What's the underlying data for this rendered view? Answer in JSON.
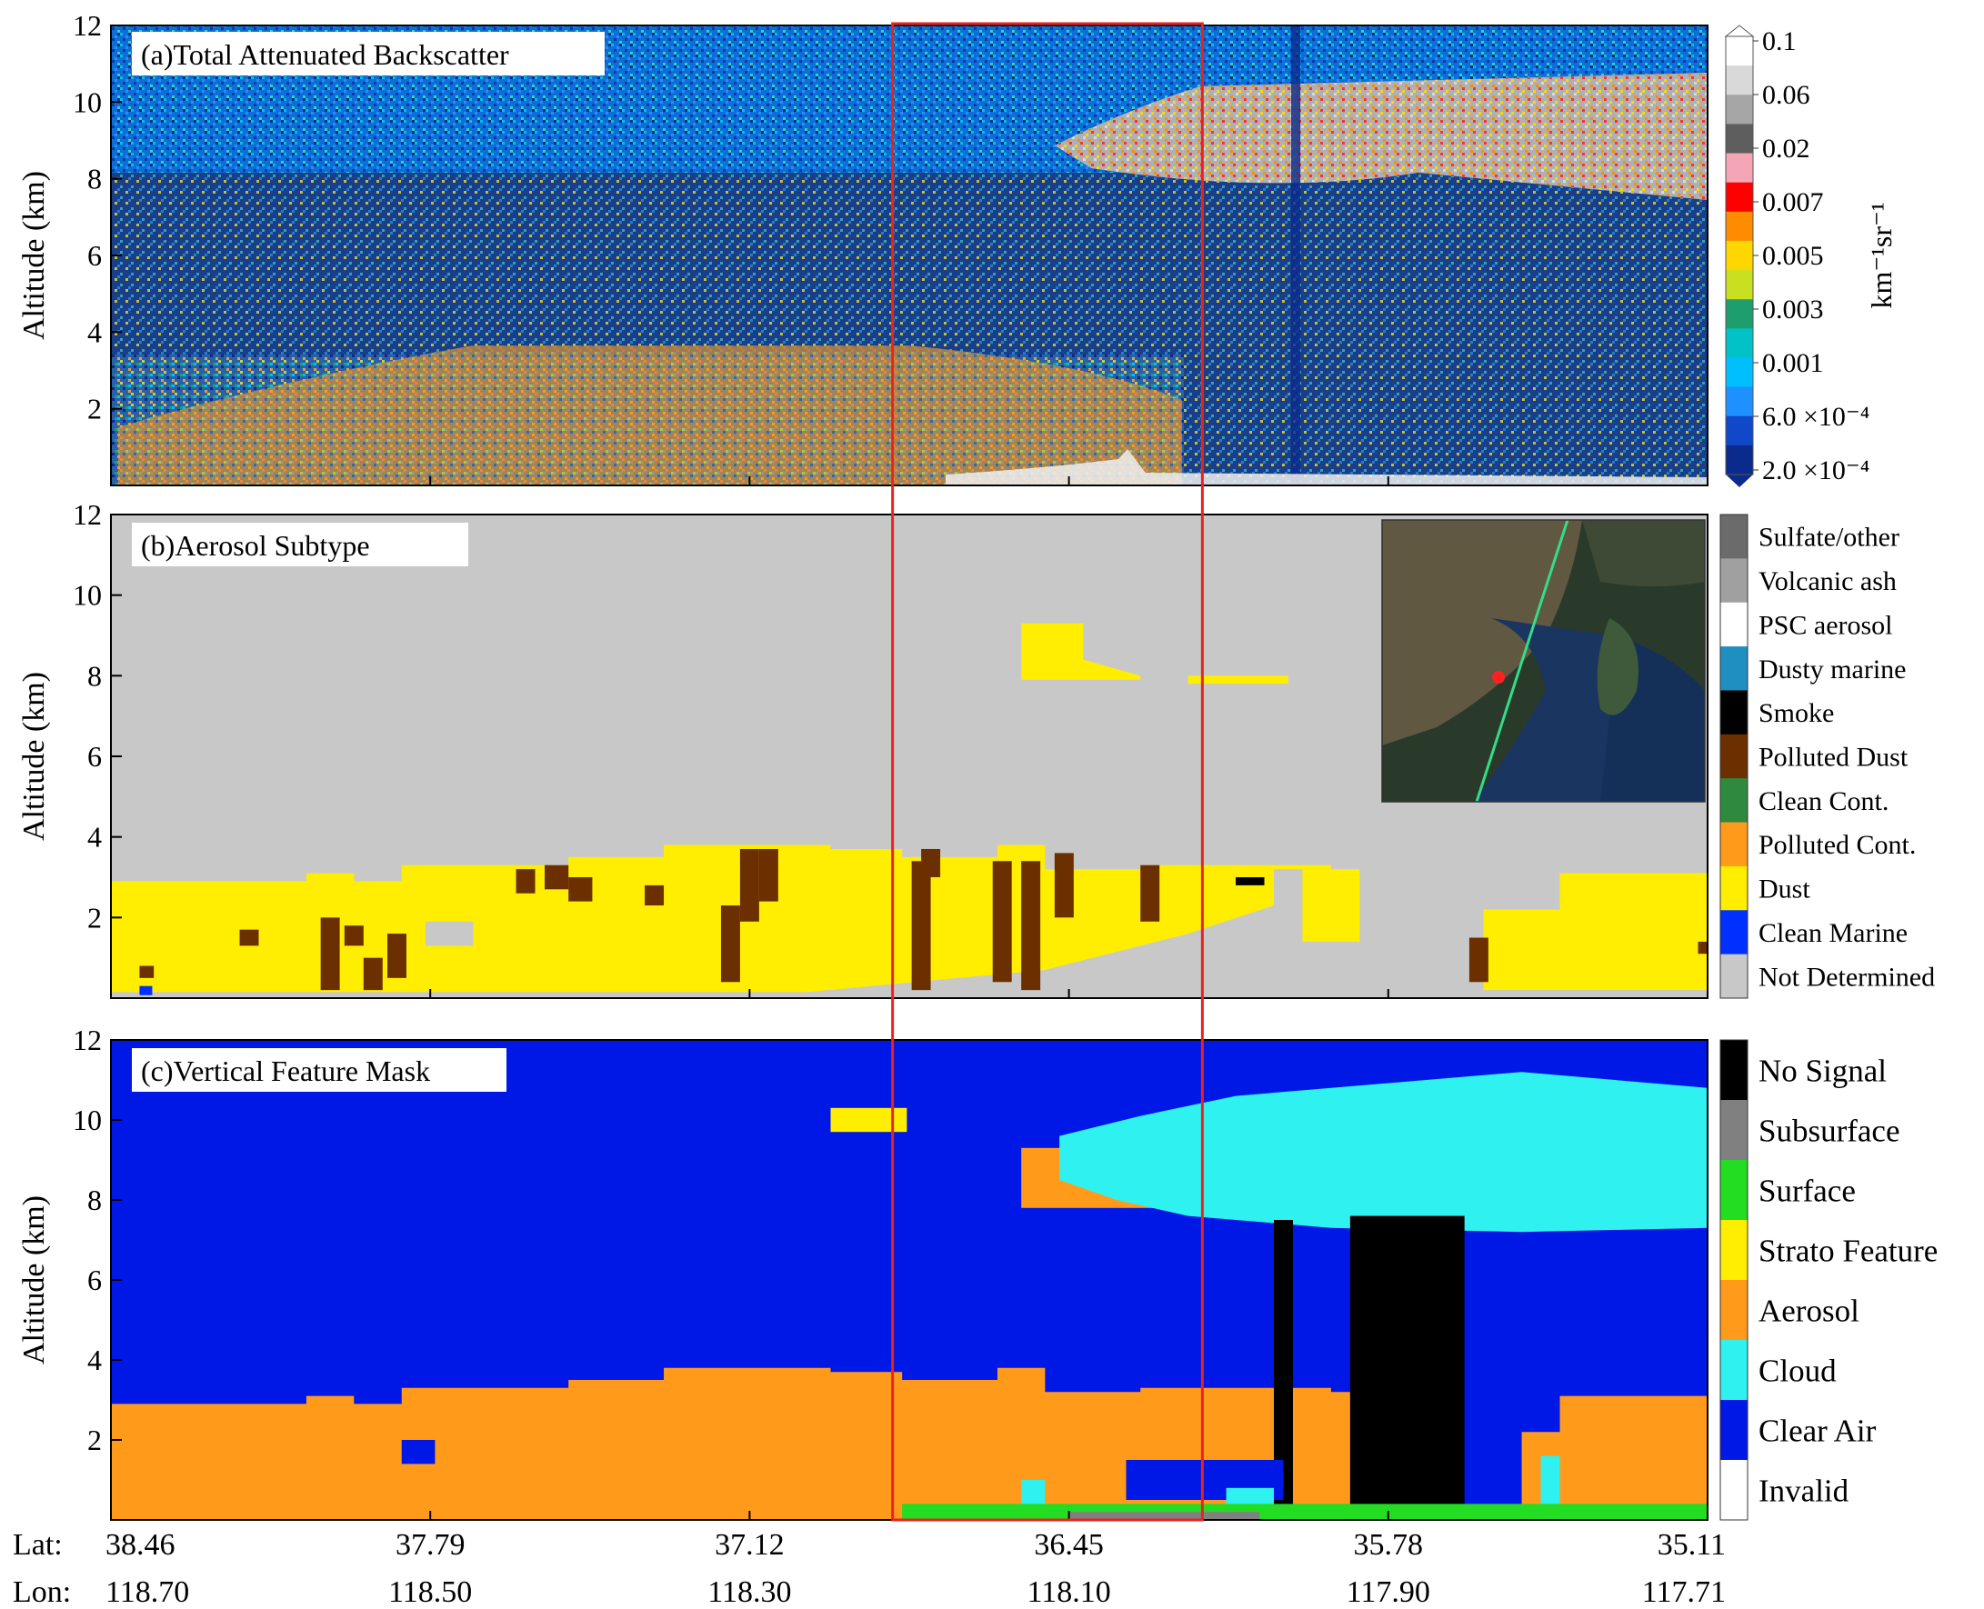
{
  "figure": {
    "x_axis": {
      "lat_prefix": "Lat:",
      "lon_prefix": "Lon:",
      "lat": [
        "38.46",
        "37.79",
        "37.12",
        "36.45",
        "35.78",
        "35.11"
      ],
      "lon": [
        "118.70",
        "118.50",
        "118.30",
        "118.10",
        "117.90",
        "117.71"
      ]
    },
    "highlight_box": {
      "x_from": "36.82",
      "x_to": "36.17",
      "color": "#e8231f"
    }
  },
  "chart_data": [
    {
      "type": "heatmap",
      "title": "(a)Total Attenuated Backscatter",
      "ylabel": "Altitude (km)",
      "ylim": [
        0,
        12
      ],
      "yticks": [
        "2",
        "4",
        "6",
        "8",
        "10",
        "12"
      ],
      "colorbar": {
        "unit_label": "km⁻¹sr⁻¹",
        "tick_labels": [
          "0.1",
          "0.06",
          "0.02",
          "0.007",
          "0.005",
          "0.003",
          "0.001",
          "6.0 ×10⁻⁴",
          "2.0 ×10⁻⁴"
        ],
        "colors": [
          "#ffffff",
          "#d9d9d9",
          "#a6a6a6",
          "#5e5e5e",
          "#f4a6b6",
          "#ff0000",
          "#ff8c00",
          "#ffd700",
          "#c8e020",
          "#1e9e6e",
          "#00c2c7",
          "#00bfff",
          "#1e90ff",
          "#1048c8",
          "#0a2a8c"
        ]
      },
      "features": [
        {
          "type": "cirrus",
          "x_from": 36.47,
          "x_to": 35.11,
          "y_from": 8.0,
          "y_to": 10.8
        },
        {
          "type": "aerosol_layer",
          "x_from": 38.46,
          "x_to": 36.2,
          "y_from": 0.2,
          "y_to": 3.5
        }
      ]
    },
    {
      "type": "heatmap",
      "title": "(b)Aerosol Subtype",
      "ylabel": "Altitude (km)",
      "ylim": [
        0,
        12
      ],
      "yticks": [
        "2",
        "4",
        "6",
        "8",
        "10",
        "12"
      ],
      "legend": [
        {
          "label": "Sulfate/other",
          "color": "#6b6b6b"
        },
        {
          "label": "Volcanic ash",
          "color": "#a0a0a0"
        },
        {
          "label": "PSC aerosol",
          "color": "#ffffff"
        },
        {
          "label": "Dusty marine",
          "color": "#1f8fc2"
        },
        {
          "label": "Smoke",
          "color": "#000000"
        },
        {
          "label": "Polluted Dust",
          "color": "#6b2f00"
        },
        {
          "label": "Clean Cont.",
          "color": "#2e8b3e"
        },
        {
          "label": "Polluted Cont.",
          "color": "#ff9a1a"
        },
        {
          "label": "Dust",
          "color": "#ffee00"
        },
        {
          "label": "Clean Marine",
          "color": "#0030ff"
        },
        {
          "label": "Not Determined",
          "color": "#c8c8c8"
        }
      ],
      "inset": {
        "type": "satellite-map",
        "track_color": "#33dd88",
        "marker_color": "#ff2020"
      }
    },
    {
      "type": "heatmap",
      "title": "(c)Vertical Feature Mask",
      "ylabel": "Altitude (km)",
      "ylim": [
        0,
        12
      ],
      "yticks": [
        "2",
        "4",
        "6",
        "8",
        "10",
        "12"
      ],
      "legend": [
        {
          "label": "No Signal",
          "color": "#000000"
        },
        {
          "label": "Subsurface",
          "color": "#808080"
        },
        {
          "label": "Surface",
          "color": "#22dd22"
        },
        {
          "label": "Strato Feature",
          "color": "#ffee00"
        },
        {
          "label": "Aerosol",
          "color": "#ff9a1a"
        },
        {
          "label": "Cloud",
          "color": "#2ff2f0"
        },
        {
          "label": "Clear Air",
          "color": "#0018e6"
        },
        {
          "label": "Invalid",
          "color": "#ffffff"
        }
      ]
    }
  ]
}
